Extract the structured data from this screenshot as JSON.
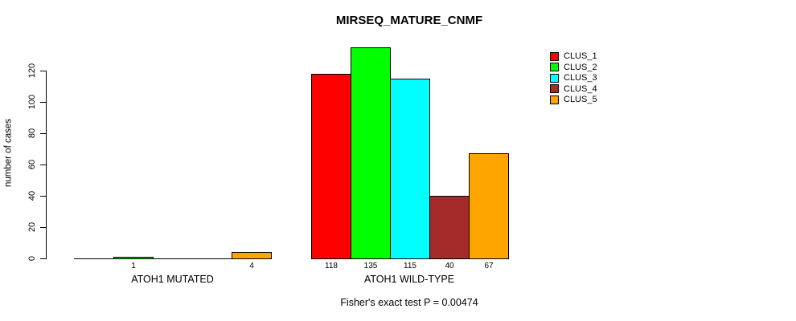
{
  "chart_data": {
    "type": "bar",
    "title": "MIRSEQ_MATURE_CNMF",
    "subtitle": "Fisher's exact test P = 0.00474",
    "xlabel": "",
    "ylabel": "number of cases",
    "ylim": [
      0,
      135
    ],
    "yticks": [
      0,
      20,
      40,
      60,
      80,
      100,
      120
    ],
    "grid": false,
    "legend_position": "top-right",
    "bar_border_color": "#000000",
    "background_color": "#ffffff",
    "series": [
      {
        "name": "CLUS_1",
        "color": "#FF0000"
      },
      {
        "name": "CLUS_2",
        "color": "#00FF00"
      },
      {
        "name": "CLUS_3",
        "color": "#00FFFF"
      },
      {
        "name": "CLUS_4",
        "color": "#A52A2A"
      },
      {
        "name": "CLUS_5",
        "color": "#FFA500"
      }
    ],
    "groups": [
      {
        "label": "ATOH1 MUTATED",
        "values": [
          0,
          1,
          0,
          0,
          4
        ],
        "bar_labels": [
          "",
          "1",
          "",
          "",
          "4"
        ]
      },
      {
        "label": "ATOH1 WILD-TYPE",
        "values": [
          118,
          135,
          115,
          40,
          67
        ],
        "bar_labels": [
          "118",
          "135",
          "115",
          "40",
          "67"
        ]
      }
    ]
  }
}
